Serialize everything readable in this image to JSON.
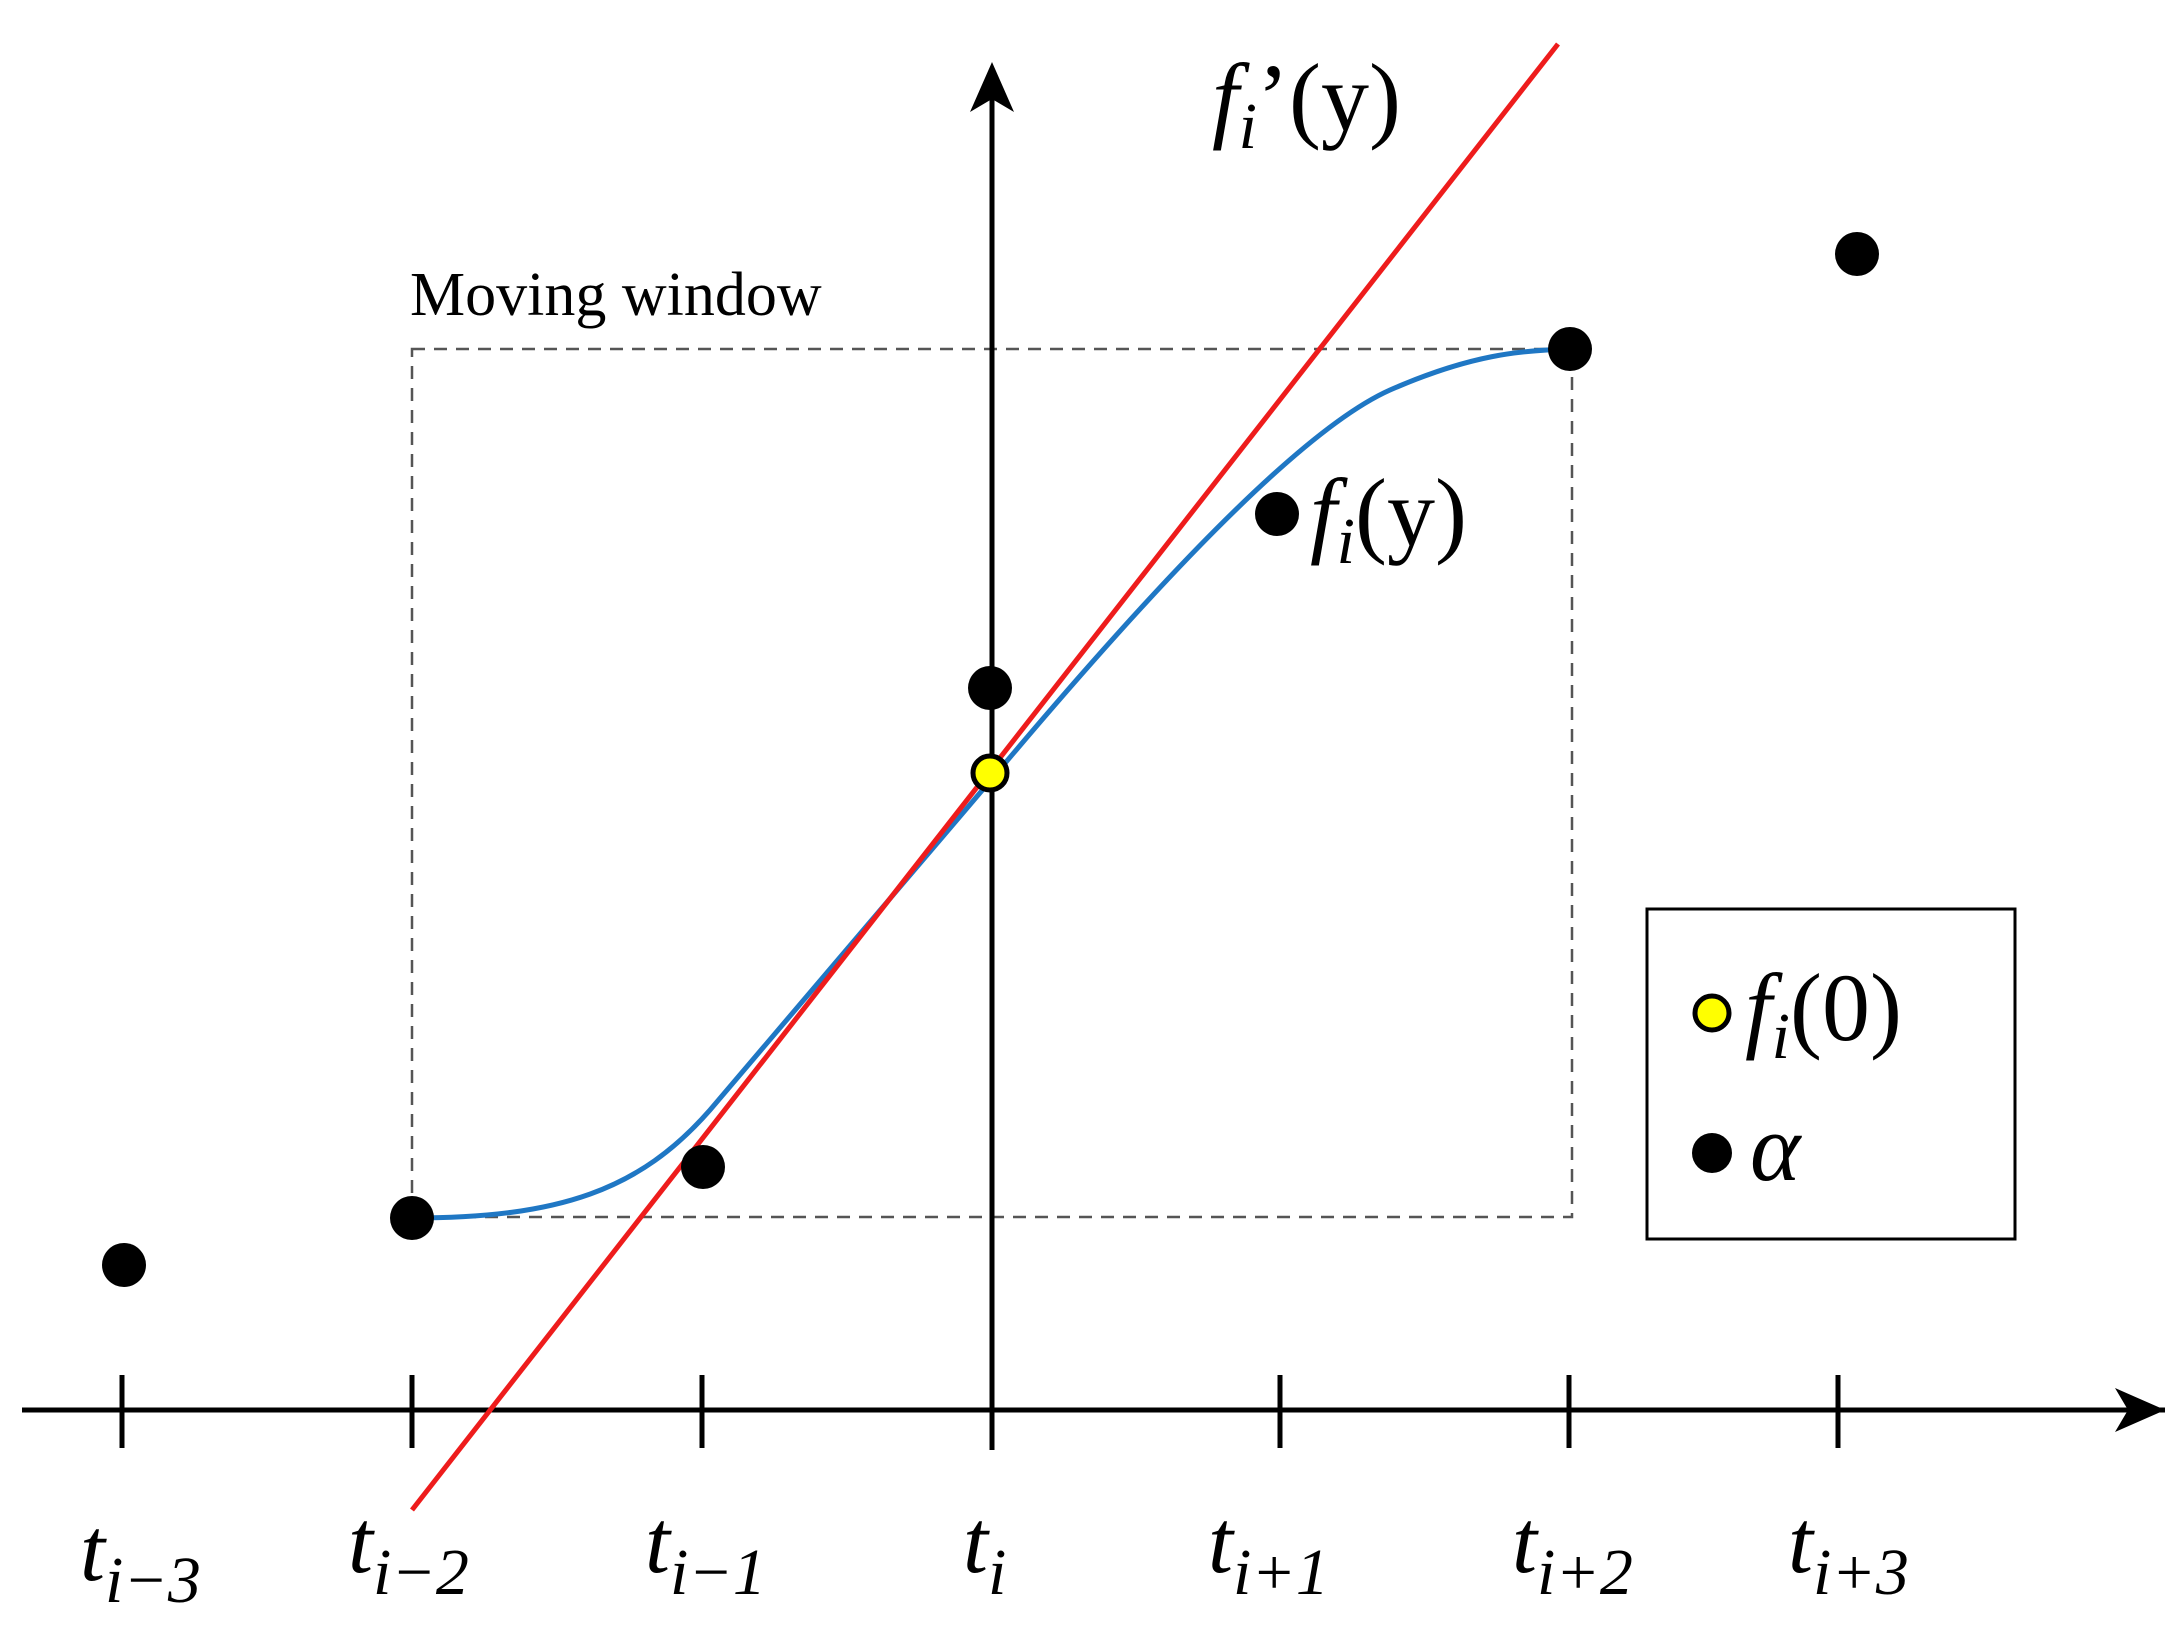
{
  "window_label": "Moving window",
  "tick_labels": [
    {
      "base": "t",
      "sub": "i−3"
    },
    {
      "base": "t",
      "sub": "i−2"
    },
    {
      "base": "t",
      "sub": "i−1"
    },
    {
      "base": "t",
      "sub": "i"
    },
    {
      "base": "t",
      "sub": "i+1"
    },
    {
      "base": "t",
      "sub": "i+2"
    },
    {
      "base": "t",
      "sub": "i+3"
    }
  ],
  "curve_labels": {
    "tangent": {
      "f": "f",
      "sub": "i",
      "prime": "’",
      "arg": "(y)"
    },
    "fit": {
      "f": "f",
      "sub": "i",
      "arg": "(y)"
    }
  },
  "legend": [
    {
      "symbol": "yellow-dot",
      "f": "f",
      "sub": "i",
      "arg": "(0)"
    },
    {
      "symbol": "black-dot",
      "text": "α"
    }
  ],
  "colors": {
    "tangent_line": "#ee1c1c",
    "fit_curve": "#1f77c4",
    "f0_point": "#ffff00",
    "points": "#000000"
  }
}
